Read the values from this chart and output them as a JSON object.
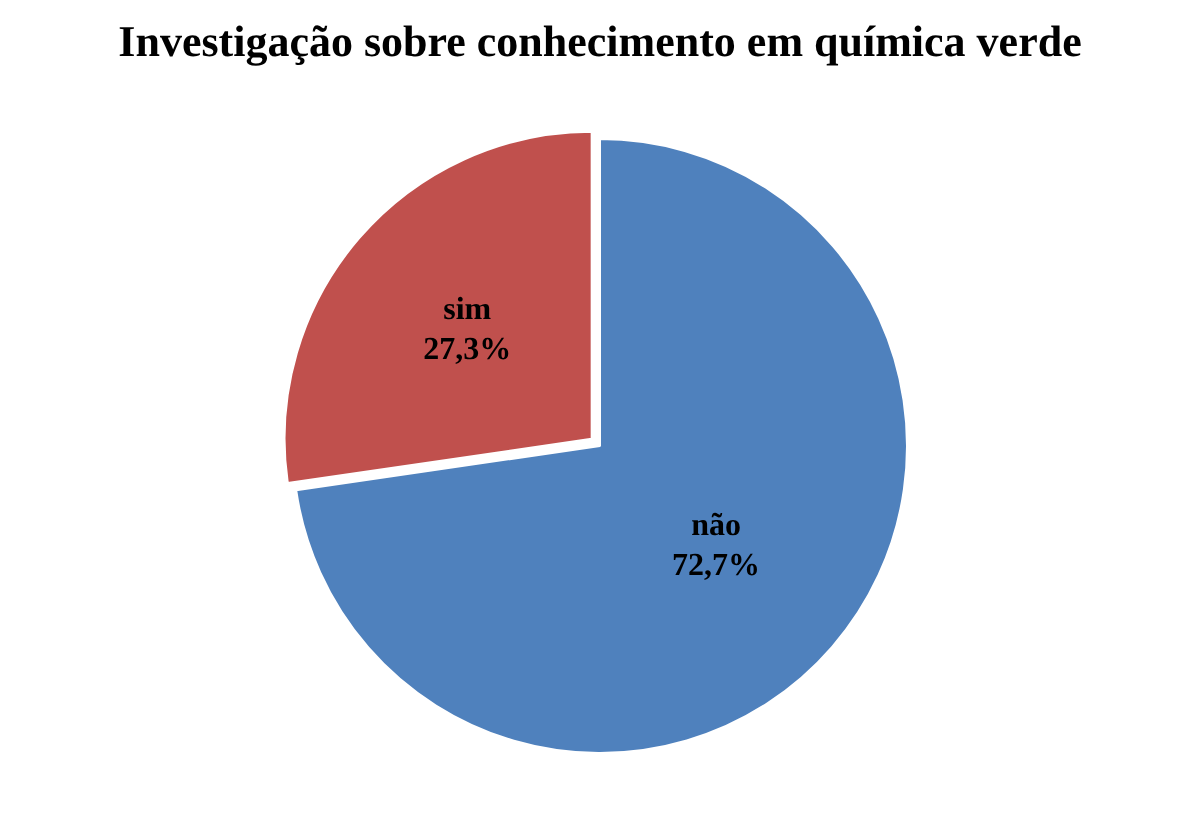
{
  "chart_data": {
    "type": "pie",
    "title": "Investigação sobre conhecimento em química verde",
    "categories": [
      "não",
      "sim"
    ],
    "values": [
      72.7,
      27.3
    ],
    "value_labels": [
      "72,7%",
      "27,3%"
    ],
    "colors": [
      "#4f81bd",
      "#c0504d"
    ],
    "legend": false
  }
}
